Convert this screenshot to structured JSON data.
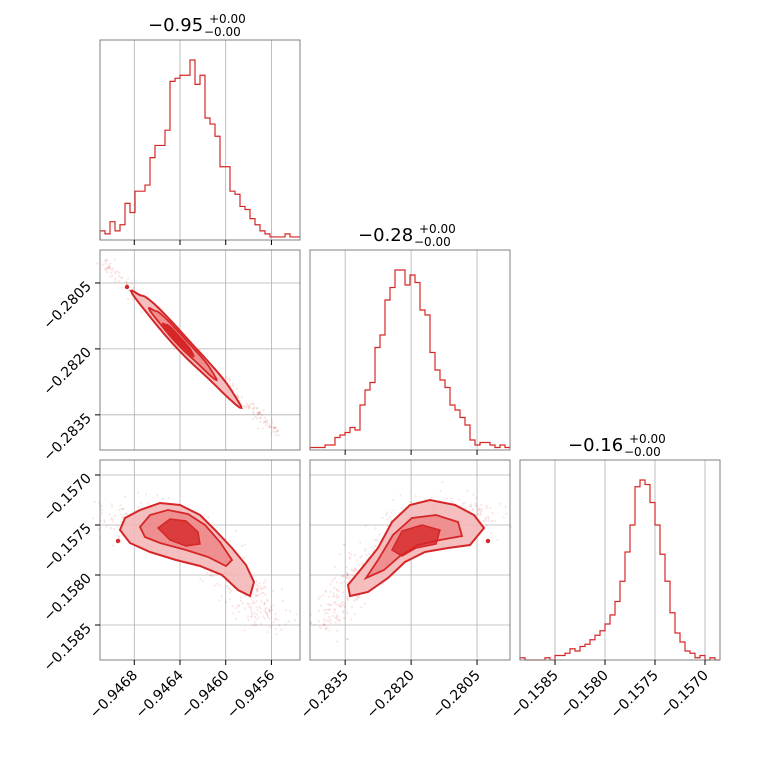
{
  "colors": {
    "main": "#d62728",
    "fill": "#f4b7b8",
    "grid": "#b0b0b0",
    "frame": "#808080"
  },
  "chart_data": {
    "type": "corner",
    "parameters": [
      {
        "title_value": "−0.95",
        "title_plus": "+0.00",
        "title_minus": "−0.00",
        "range": [
          -0.9471,
          -0.94535
        ],
        "ticks": [
          -0.9468,
          -0.9464,
          -0.946,
          -0.9456
        ],
        "tick_labels": [
          "−0.9468",
          "−0.9464",
          "−0.9460",
          "−0.9456"
        ]
      },
      {
        "title_value": "−0.28",
        "title_plus": "+0.00",
        "title_minus": "−0.00",
        "range": [
          -0.2843,
          -0.27975
        ],
        "ticks": [
          -0.2835,
          -0.282,
          -0.2805
        ],
        "tick_labels": [
          "−0.2835",
          "−0.2820",
          "−0.2805"
        ]
      },
      {
        "title_value": "−0.16",
        "title_plus": "+0.00",
        "title_minus": "−0.00",
        "range": [
          -0.15885,
          -0.15685
        ],
        "ticks": [
          -0.1585,
          -0.158,
          -0.1575,
          -0.157
        ],
        "tick_labels": [
          "−0.1585",
          "−0.1580",
          "−0.1575",
          "−0.1570"
        ]
      }
    ],
    "histograms": [
      {
        "param": 0,
        "counts": [
          3,
          2,
          6,
          3,
          5,
          12,
          9,
          16,
          16,
          18,
          27,
          31,
          31,
          36,
          52,
          53,
          54,
          54,
          59,
          51,
          54,
          40,
          38,
          34,
          24,
          24,
          16,
          15,
          11,
          10,
          7,
          5,
          3,
          2,
          1,
          1,
          1,
          2,
          1,
          1
        ]
      },
      {
        "param": 1,
        "counts": [
          1,
          1,
          1,
          2,
          2,
          5,
          6,
          7,
          9,
          8,
          18,
          24,
          27,
          41,
          46,
          60,
          65,
          72,
          72,
          66,
          70,
          67,
          56,
          54,
          39,
          32,
          28,
          25,
          18,
          16,
          13,
          10,
          4,
          2,
          3,
          3,
          2,
          1,
          2,
          1
        ]
      },
      {
        "param": 2,
        "counts": [
          1,
          0,
          0,
          0,
          0,
          1,
          0,
          2,
          2,
          3,
          5,
          4,
          6,
          7,
          9,
          11,
          13,
          16,
          20,
          26,
          35,
          48,
          60,
          77,
          80,
          78,
          70,
          60,
          47,
          35,
          21,
          12,
          8,
          4,
          3,
          1,
          2,
          0,
          1,
          0
        ]
      }
    ],
    "correlations": [
      {
        "x": 1,
        "y": 0,
        "type": "negative-linear"
      },
      {
        "x": 2,
        "y": 0,
        "type": "negative-banana"
      },
      {
        "x": 2,
        "y": 1,
        "type": "positive-banana"
      }
    ],
    "grid": true
  }
}
